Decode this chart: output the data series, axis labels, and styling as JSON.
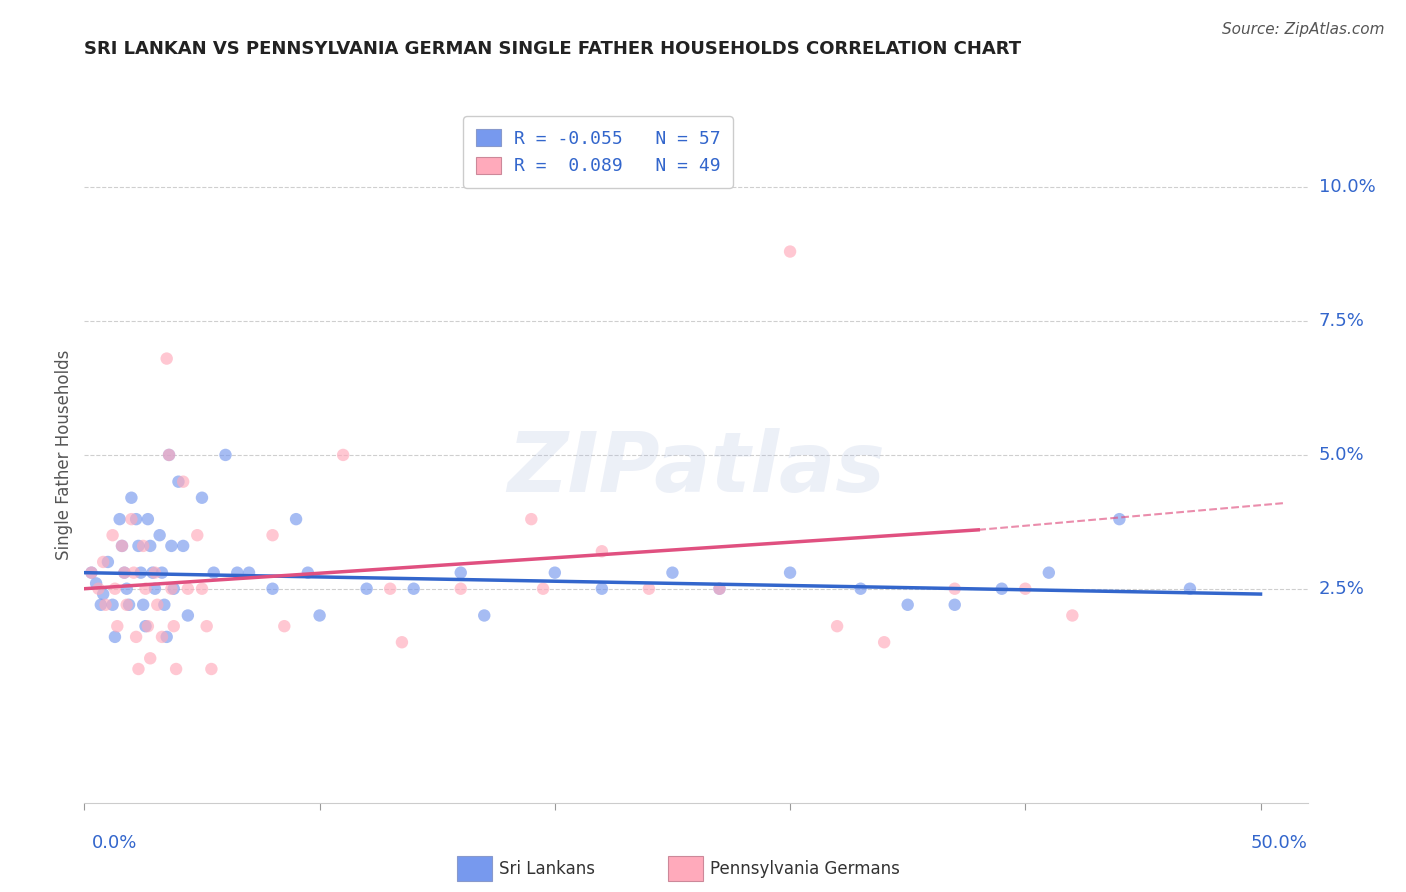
{
  "title": "SRI LANKAN VS PENNSYLVANIA GERMAN SINGLE FATHER HOUSEHOLDS CORRELATION CHART",
  "source": "Source: ZipAtlas.com",
  "ylabel": "Single Father Households",
  "ytick_labels": [
    "2.5%",
    "5.0%",
    "7.5%",
    "10.0%"
  ],
  "ytick_values": [
    0.025,
    0.05,
    0.075,
    0.1
  ],
  "xlim": [
    0.0,
    0.52
  ],
  "ylim": [
    -0.015,
    0.115
  ],
  "watermark": "ZIPatlas",
  "legend": {
    "blue_r": "R = -0.055",
    "blue_n": "N = 57",
    "pink_r": "R =  0.089",
    "pink_n": "N = 49"
  },
  "blue_scatter": [
    [
      0.003,
      0.028
    ],
    [
      0.005,
      0.026
    ],
    [
      0.007,
      0.022
    ],
    [
      0.008,
      0.024
    ],
    [
      0.01,
      0.03
    ],
    [
      0.012,
      0.022
    ],
    [
      0.013,
      0.016
    ],
    [
      0.015,
      0.038
    ],
    [
      0.016,
      0.033
    ],
    [
      0.017,
      0.028
    ],
    [
      0.018,
      0.025
    ],
    [
      0.019,
      0.022
    ],
    [
      0.02,
      0.042
    ],
    [
      0.022,
      0.038
    ],
    [
      0.023,
      0.033
    ],
    [
      0.024,
      0.028
    ],
    [
      0.025,
      0.022
    ],
    [
      0.026,
      0.018
    ],
    [
      0.027,
      0.038
    ],
    [
      0.028,
      0.033
    ],
    [
      0.029,
      0.028
    ],
    [
      0.03,
      0.025
    ],
    [
      0.032,
      0.035
    ],
    [
      0.033,
      0.028
    ],
    [
      0.034,
      0.022
    ],
    [
      0.035,
      0.016
    ],
    [
      0.036,
      0.05
    ],
    [
      0.037,
      0.033
    ],
    [
      0.038,
      0.025
    ],
    [
      0.04,
      0.045
    ],
    [
      0.042,
      0.033
    ],
    [
      0.044,
      0.02
    ],
    [
      0.05,
      0.042
    ],
    [
      0.055,
      0.028
    ],
    [
      0.06,
      0.05
    ],
    [
      0.065,
      0.028
    ],
    [
      0.07,
      0.028
    ],
    [
      0.08,
      0.025
    ],
    [
      0.09,
      0.038
    ],
    [
      0.095,
      0.028
    ],
    [
      0.1,
      0.02
    ],
    [
      0.12,
      0.025
    ],
    [
      0.14,
      0.025
    ],
    [
      0.16,
      0.028
    ],
    [
      0.17,
      0.02
    ],
    [
      0.2,
      0.028
    ],
    [
      0.22,
      0.025
    ],
    [
      0.25,
      0.028
    ],
    [
      0.27,
      0.025
    ],
    [
      0.3,
      0.028
    ],
    [
      0.33,
      0.025
    ],
    [
      0.35,
      0.022
    ],
    [
      0.37,
      0.022
    ],
    [
      0.39,
      0.025
    ],
    [
      0.41,
      0.028
    ],
    [
      0.44,
      0.038
    ],
    [
      0.47,
      0.025
    ]
  ],
  "pink_scatter": [
    [
      0.003,
      0.028
    ],
    [
      0.006,
      0.025
    ],
    [
      0.008,
      0.03
    ],
    [
      0.009,
      0.022
    ],
    [
      0.012,
      0.035
    ],
    [
      0.013,
      0.025
    ],
    [
      0.014,
      0.018
    ],
    [
      0.016,
      0.033
    ],
    [
      0.017,
      0.028
    ],
    [
      0.018,
      0.022
    ],
    [
      0.02,
      0.038
    ],
    [
      0.021,
      0.028
    ],
    [
      0.022,
      0.016
    ],
    [
      0.023,
      0.01
    ],
    [
      0.025,
      0.033
    ],
    [
      0.026,
      0.025
    ],
    [
      0.027,
      0.018
    ],
    [
      0.028,
      0.012
    ],
    [
      0.03,
      0.028
    ],
    [
      0.031,
      0.022
    ],
    [
      0.033,
      0.016
    ],
    [
      0.035,
      0.068
    ],
    [
      0.036,
      0.05
    ],
    [
      0.037,
      0.025
    ],
    [
      0.038,
      0.018
    ],
    [
      0.039,
      0.01
    ],
    [
      0.042,
      0.045
    ],
    [
      0.044,
      0.025
    ],
    [
      0.048,
      0.035
    ],
    [
      0.05,
      0.025
    ],
    [
      0.052,
      0.018
    ],
    [
      0.054,
      0.01
    ],
    [
      0.08,
      0.035
    ],
    [
      0.085,
      0.018
    ],
    [
      0.11,
      0.05
    ],
    [
      0.13,
      0.025
    ],
    [
      0.135,
      0.015
    ],
    [
      0.16,
      0.025
    ],
    [
      0.19,
      0.038
    ],
    [
      0.195,
      0.025
    ],
    [
      0.22,
      0.032
    ],
    [
      0.24,
      0.025
    ],
    [
      0.27,
      0.025
    ],
    [
      0.3,
      0.088
    ],
    [
      0.32,
      0.018
    ],
    [
      0.34,
      0.015
    ],
    [
      0.37,
      0.025
    ],
    [
      0.4,
      0.025
    ],
    [
      0.42,
      0.02
    ]
  ],
  "blue_line": {
    "x": [
      0.0,
      0.5
    ],
    "y": [
      0.028,
      0.024
    ],
    "color": "#3366cc",
    "linewidth": 2.5,
    "linestyle": "solid"
  },
  "pink_line_solid": {
    "x": [
      0.0,
      0.38
    ],
    "y": [
      0.025,
      0.036
    ],
    "color": "#e05080",
    "linewidth": 2.5,
    "linestyle": "solid"
  },
  "pink_line_dashed": {
    "x": [
      0.38,
      0.51
    ],
    "y": [
      0.036,
      0.041
    ],
    "color": "#e05080",
    "linewidth": 1.5,
    "linestyle": "dashed"
  },
  "background_color": "#ffffff",
  "grid_color": "#bbbbbb",
  "blue_dot_color": "#7799ee",
  "pink_dot_color": "#ffaabb",
  "title_color": "#222222",
  "axis_label_color": "#3366cc",
  "ylabel_color": "#555555",
  "dot_size": 80,
  "dot_alpha": 0.65,
  "bottom_legend": [
    {
      "label": "Sri Lankans",
      "color": "#7799ee"
    },
    {
      "label": "Pennsylvania Germans",
      "color": "#ffaabb"
    }
  ]
}
